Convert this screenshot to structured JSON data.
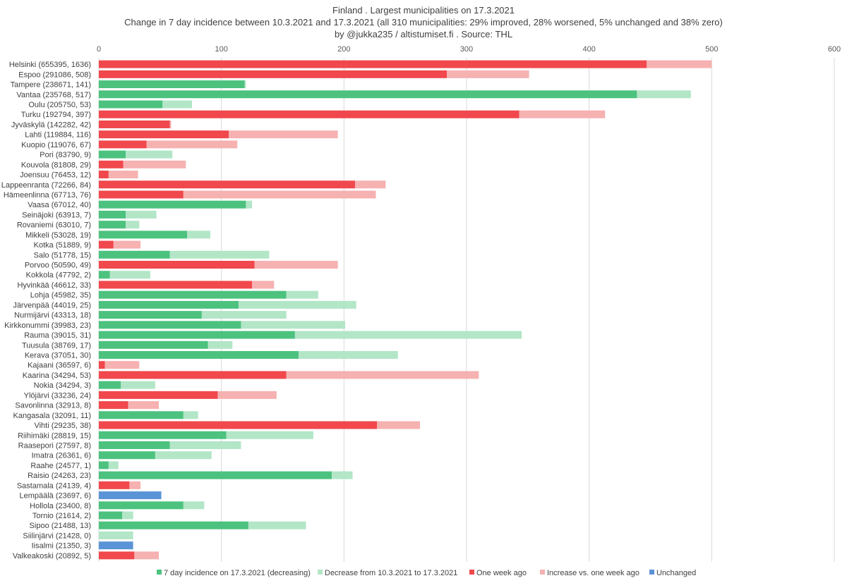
{
  "chart_data": {
    "type": "bar",
    "orientation": "horizontal",
    "stacked": true,
    "title_lines": [
      "Finland . Largest municipalities on 17.3.2021",
      "Change in 7 day incidence between 10.3.2021 and 17.3.2021   (all 310 municipalities: 29% improved, 28% worsened, 5% unchanged and 38% zero)",
      "by @jukka235 / altistumiset.fi . Source: THL"
    ],
    "xlim": [
      0,
      600
    ],
    "xticks": [
      "0",
      "100",
      "200",
      "300",
      "400",
      "500",
      "600"
    ],
    "grid": true,
    "legend_position": "bottom",
    "legend": [
      {
        "name": "7 day incidence on 17.3.2021 (decreasing)",
        "color": "#4cc27e"
      },
      {
        "name": "Decrease from 10.3.2021 to 17.3.2021",
        "color": "#b2e6c7"
      },
      {
        "name": "One week ago",
        "color": "#f0484c"
      },
      {
        "name": "Increase vs. one week ago",
        "color": "#f6b1b1"
      },
      {
        "name": "Unchanged",
        "color": "#5b94d6"
      }
    ],
    "categories": [
      "Helsinki  (655395, 1636)",
      "Espoo  (291086, 508)",
      "Tampere  (238671, 141)",
      "Vantaa  (235768, 517)",
      "Oulu  (205750, 53)",
      "Turku  (192794, 397)",
      "Jyväskylä  (142282, 42)",
      "Lahti  (119884, 116)",
      "Kuopio  (119076, 67)",
      "Pori  (83790, 9)",
      "Kouvola  (81808, 29)",
      "Joensuu  (76453, 12)",
      "Lappeenranta  (72266, 84)",
      "Hämeenlinna  (67713, 76)",
      "Vaasa  (67012, 40)",
      "Seinäjoki  (63913, 7)",
      "Rovaniemi  (63010, 7)",
      "Mikkeli  (53028, 19)",
      "Kotka  (51889, 9)",
      "Salo  (51778, 15)",
      "Porvoo  (50590, 49)",
      "Kokkola  (47792, 2)",
      "Hyvinkää  (46612, 33)",
      "Lohja  (45982, 35)",
      "Järvenpää  (44019, 25)",
      "Nurmijärvi  (43313, 18)",
      "Kirkkonummi  (39983, 23)",
      "Rauma  (39015, 31)",
      "Tuusula  (38769, 17)",
      "Kerava  (37051, 30)",
      "Kajaani  (36597, 6)",
      "Kaarina  (34294, 53)",
      "Nokia  (34294, 3)",
      "Ylöjärvi  (33236, 24)",
      "Savonlinna  (32913, 8)",
      "Kangasala  (32091, 11)",
      "Vihti  (29235, 38)",
      "Riihimäki  (28819, 15)",
      "Raasepori  (27597, 8)",
      "Imatra  (26361, 6)",
      "Raahe  (24577, 1)",
      "Raisio  (24263, 23)",
      "Sastamala  (24139, 4)",
      "Lempäälä  (23697, 6)",
      "Hollola  (23400, 8)",
      "Tornio  (21614, 2)",
      "Sipoo  (21488, 13)",
      "Siilinjärvi  (21428, 0)",
      "Iisalmi  (21350, 3)",
      "Valkeakoski  (20892, 5)"
    ],
    "series": [
      {
        "name": "7 day incidence on 17.3.2021 (decreasing)",
        "color": "#4cc27e",
        "values": [
          0,
          0,
          119,
          439,
          52,
          0,
          0,
          0,
          0,
          22,
          0,
          0,
          0,
          0,
          120,
          22,
          22,
          72,
          0,
          58,
          0,
          9,
          0,
          153,
          114,
          84,
          116,
          160,
          89,
          163,
          0,
          0,
          18,
          0,
          0,
          69,
          0,
          104,
          58,
          46,
          8,
          190,
          0,
          0,
          69,
          19,
          122,
          0,
          0,
          0
        ]
      },
      {
        "name": "Decrease from 10.3.2021 to 17.3.2021",
        "color": "#b2e6c7",
        "values": [
          0,
          0,
          1,
          44,
          24,
          0,
          0,
          0,
          0,
          38,
          0,
          0,
          0,
          0,
          5,
          25,
          11,
          19,
          0,
          81,
          0,
          33,
          0,
          26,
          96,
          69,
          85,
          185,
          20,
          81,
          0,
          0,
          28,
          0,
          0,
          12,
          0,
          71,
          58,
          46,
          8,
          17,
          0,
          0,
          17,
          9,
          47,
          28,
          0,
          0
        ]
      },
      {
        "name": "One week ago",
        "color": "#f0484c",
        "values": [
          447,
          284,
          0,
          0,
          0,
          343,
          58,
          106,
          39,
          0,
          20,
          8,
          209,
          69,
          0,
          0,
          0,
          0,
          12,
          0,
          127,
          0,
          125,
          0,
          0,
          0,
          0,
          0,
          0,
          0,
          5,
          153,
          0,
          97,
          24,
          0,
          227,
          0,
          0,
          0,
          0,
          0,
          25,
          0,
          0,
          0,
          0,
          0,
          0,
          29
        ]
      },
      {
        "name": "Increase vs. one week ago",
        "color": "#f6b1b1",
        "values": [
          53,
          67,
          0,
          0,
          0,
          70,
          1,
          89,
          74,
          0,
          51,
          24,
          25,
          157,
          0,
          0,
          0,
          0,
          22,
          0,
          68,
          0,
          18,
          0,
          0,
          0,
          0,
          0,
          0,
          0,
          28,
          157,
          0,
          48,
          25,
          0,
          35,
          0,
          0,
          0,
          0,
          0,
          9,
          0,
          0,
          0,
          0,
          0,
          0,
          20
        ]
      },
      {
        "name": "Unchanged",
        "color": "#5b94d6",
        "values": [
          0,
          0,
          0,
          0,
          0,
          0,
          0,
          0,
          0,
          0,
          0,
          0,
          0,
          0,
          0,
          0,
          0,
          0,
          0,
          0,
          0,
          0,
          0,
          0,
          0,
          0,
          0,
          0,
          0,
          0,
          0,
          0,
          0,
          0,
          0,
          0,
          0,
          0,
          0,
          0,
          0,
          0,
          0,
          51,
          0,
          0,
          0,
          0,
          28,
          0
        ]
      }
    ]
  }
}
